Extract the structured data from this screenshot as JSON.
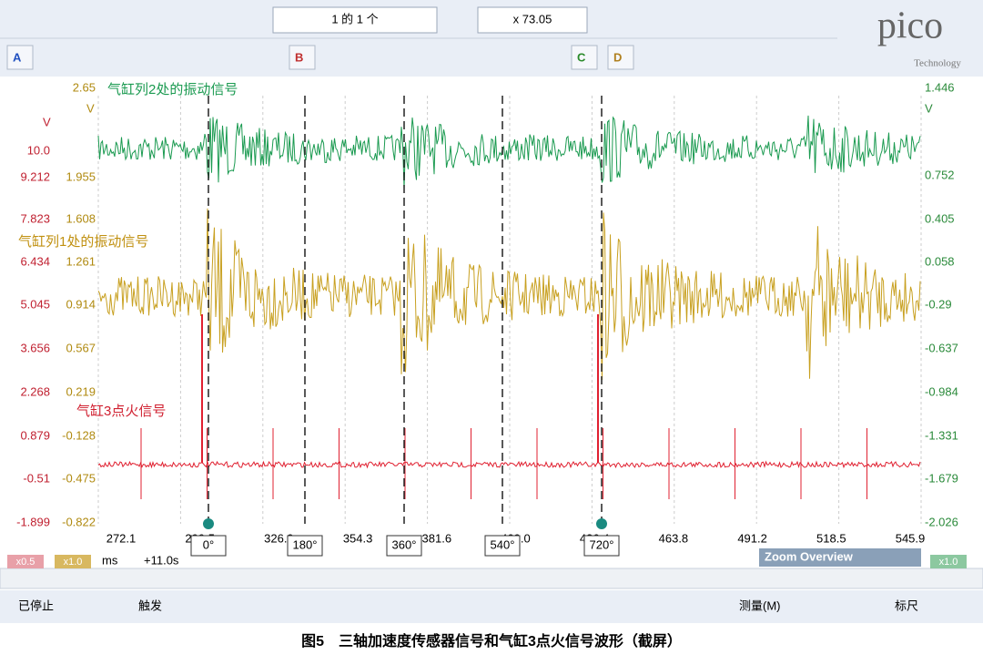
{
  "toolbar": {
    "page": "1 的 1 个",
    "zoom": "x 73.05",
    "channels": [
      "A",
      "B",
      "C",
      "D"
    ]
  },
  "logo": {
    "brand": "pico",
    "sub": "Technology"
  },
  "scope": {
    "left_axis_1": {
      "unit": "V",
      "labels": [
        "10.0",
        "9.212",
        "7.823",
        "6.434",
        "5.045",
        "3.656",
        "2.268",
        "0.879",
        "-0.51",
        "-1.899"
      ]
    },
    "left_axis_2": {
      "unit": "V",
      "labels": [
        "2.65",
        "1.955",
        "1.608",
        "1.261",
        "0.914",
        "0.567",
        "0.219",
        "-0.128",
        "-0.475",
        "-0.822"
      ]
    },
    "right_axis": {
      "unit": "V",
      "labels": [
        "1.446",
        "0.752",
        "0.405",
        "0.058",
        "-0.29",
        "-0.637",
        "-0.984",
        "-1.331",
        "-1.679",
        "-2.026"
      ]
    },
    "x_axis": {
      "unit": "ms",
      "offset": "+11.0s",
      "labels": [
        "272.1",
        "299.5",
        "326.9",
        "354.3",
        "381.6",
        "409.0",
        "436.4",
        "463.8",
        "491.2",
        "518.5",
        "545.9"
      ]
    },
    "angle_markers": [
      "0°",
      "180°",
      "360°",
      "540°",
      "720°"
    ],
    "annotations": [
      "气缸列2处的振动信号",
      "气缸列1处的振动信号",
      "气缸3点火信号"
    ],
    "scale_badges": [
      "x0.5",
      "x1.0",
      "x1.0"
    ],
    "zoom_overview": "Zoom Overview"
  },
  "statusbar": {
    "state": "已停止",
    "trigger": "触发",
    "measure": "测量(M)",
    "ruler": "标尺"
  },
  "caption": "图5　三轴加速度传感器信号和气缸3点火信号波形（截屏）"
}
